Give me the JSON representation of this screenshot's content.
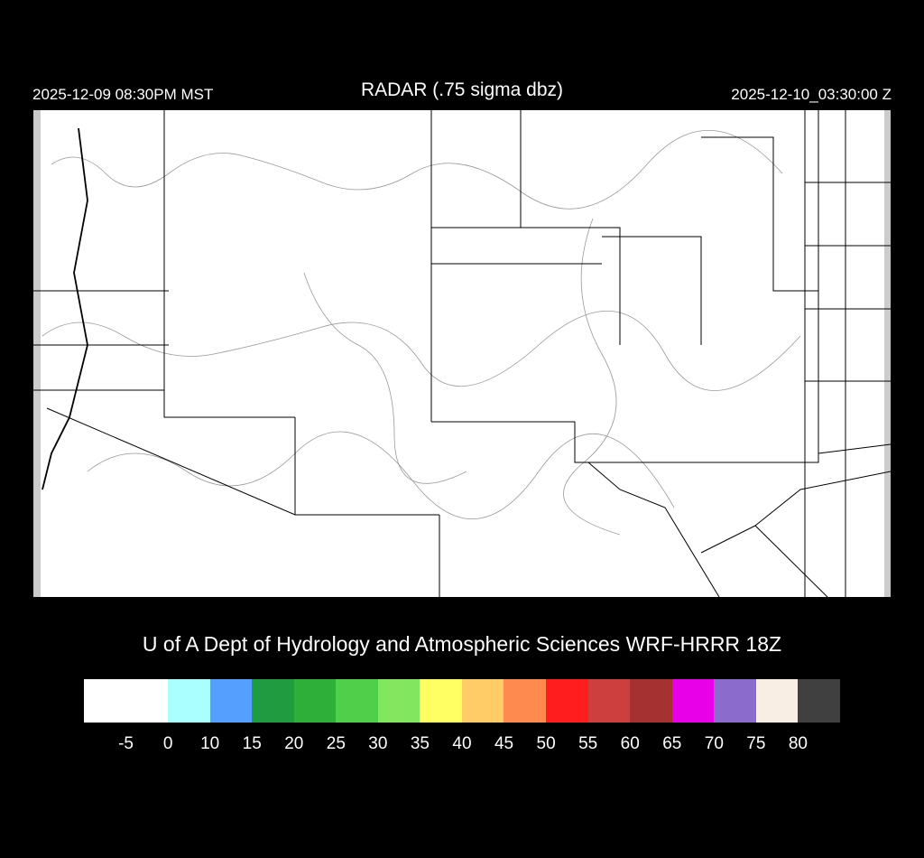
{
  "header": {
    "local_time": "2025-12-09 08:30PM MST",
    "title": "RADAR (.75 sigma dbz)",
    "utc_time": "2025-12-10_03:30:00 Z"
  },
  "credit": "U of A Dept of Hydrology and Atmospheric Sciences WRF-HRRR 18Z",
  "colorbar": {
    "colors": [
      "#ffffff",
      "#aaffff",
      "#559fff",
      "#209b40",
      "#2eaf3a",
      "#4fcf4a",
      "#82e65f",
      "#ffff64",
      "#ffcc68",
      "#ff8a4f",
      "#ff1d1d",
      "#cd3f3f",
      "#a53131",
      "#e800e8",
      "#8b6bcb",
      "#f8eee4",
      "#404040"
    ],
    "labels": [
      "-5",
      "0",
      "10",
      "15",
      "20",
      "25",
      "30",
      "35",
      "40",
      "45",
      "50",
      "55",
      "60",
      "65",
      "70",
      "75",
      "80"
    ]
  }
}
